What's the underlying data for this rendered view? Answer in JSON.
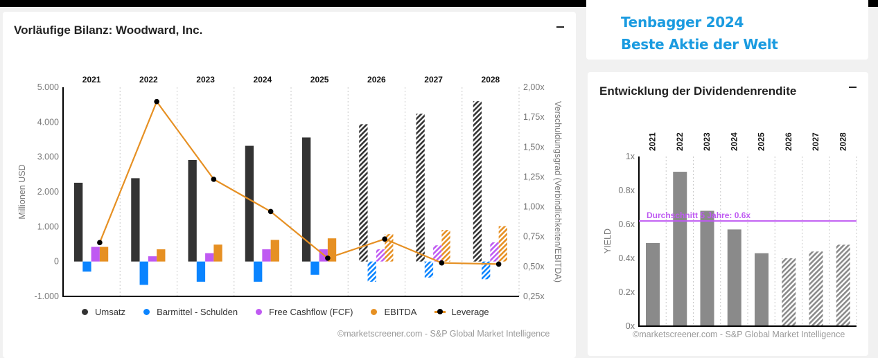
{
  "left_card": {
    "title": "Vorläufige Bilanz: Woodward, Inc.",
    "minimize_label": "−",
    "credit": "©marketscreener.com - S&P Global Market Intelligence"
  },
  "promo": {
    "line1": "Tenbagger 2024",
    "line2": "Beste Aktie der Welt",
    "color": "#1a9be0"
  },
  "dividend_card": {
    "title": "Entwicklung der Dividendenrendite",
    "minimize_label": "−",
    "credit": "©marketscreener.com - S&P Global Market Intelligence"
  },
  "legend": [
    {
      "label": "Umsatz",
      "color": "#333333",
      "icon": "dot"
    },
    {
      "label": "Barmittel - Schulden",
      "color": "#0a84ff",
      "icon": "dot"
    },
    {
      "label": "Free Cashflow (FCF)",
      "color": "#bf5af2",
      "icon": "dot"
    },
    {
      "label": "EBITDA",
      "color": "#e69023",
      "icon": "dot"
    },
    {
      "label": "Leverage",
      "color": "#e69023",
      "icon": "line-dot"
    }
  ],
  "chart_data": [
    {
      "type": "bar",
      "title": "Vorläufige Bilanz: Woodward, Inc.",
      "categories": [
        "2021",
        "2022",
        "2023",
        "2024",
        "2025",
        "2026",
        "2027",
        "2028"
      ],
      "estimated_from": "2026",
      "ylabel": "Millionen USD",
      "ylim": [
        -1000,
        5000
      ],
      "yticks": [
        "-1.000",
        "0",
        "1.000",
        "2.000",
        "3.000",
        "4.000",
        "5.000"
      ],
      "y2label": "Verschuldungsgrad (Verbindlichkeiten/EBITDA)",
      "y2lim": [
        0.25,
        2.0
      ],
      "y2ticks": [
        "0,25x",
        "0,50x",
        "0,75x",
        "1,00x",
        "1,25x",
        "1,50x",
        "1,75x",
        "2,00x"
      ],
      "series": [
        {
          "name": "Umsatz",
          "color": "#333333",
          "values": [
            2260,
            2390,
            2915,
            3320,
            3560,
            3940,
            4240,
            4600
          ]
        },
        {
          "name": "Barmittel - Schulden",
          "color": "#0a84ff",
          "values": [
            -290,
            -670,
            -580,
            -580,
            -380,
            -580,
            -460,
            -510
          ]
        },
        {
          "name": "Free Cashflow (FCF)",
          "color": "#bf5af2",
          "values": [
            420,
            150,
            240,
            350,
            350,
            350,
            465,
            550
          ]
        },
        {
          "name": "EBITDA",
          "color": "#e69023",
          "values": [
            420,
            350,
            485,
            620,
            665,
            785,
            905,
            1015
          ]
        },
        {
          "name": "Leverage",
          "color": "#e69023",
          "type": "line",
          "axis": "right",
          "values": [
            0.7,
            1.88,
            1.23,
            0.96,
            0.57,
            0.73,
            0.53,
            0.52
          ]
        }
      ],
      "grid": "vertical dotted separators",
      "legend": "bottom"
    },
    {
      "type": "bar",
      "title": "Entwicklung der Dividendenrendite",
      "categories": [
        "2021",
        "2022",
        "2023",
        "2024",
        "2025",
        "2026",
        "2027",
        "2028"
      ],
      "estimated_from": "2026",
      "ylabel": "YIELD",
      "ylim": [
        0,
        1
      ],
      "yticks": [
        "0x",
        "0.2x",
        "0.4x",
        "0.6x",
        "0.8x",
        "1x"
      ],
      "series": [
        {
          "name": "Dividendenrendite",
          "color": "#8a8a8a",
          "values": [
            0.49,
            0.91,
            0.68,
            0.57,
            0.43,
            0.4,
            0.44,
            0.48
          ]
        }
      ],
      "average": {
        "label": "Durchschnitt 5 Jahre: 0.6x",
        "value": 0.62,
        "color": "#bf5af2"
      },
      "grid": "vertical dotted separators",
      "legend": "none"
    }
  ]
}
